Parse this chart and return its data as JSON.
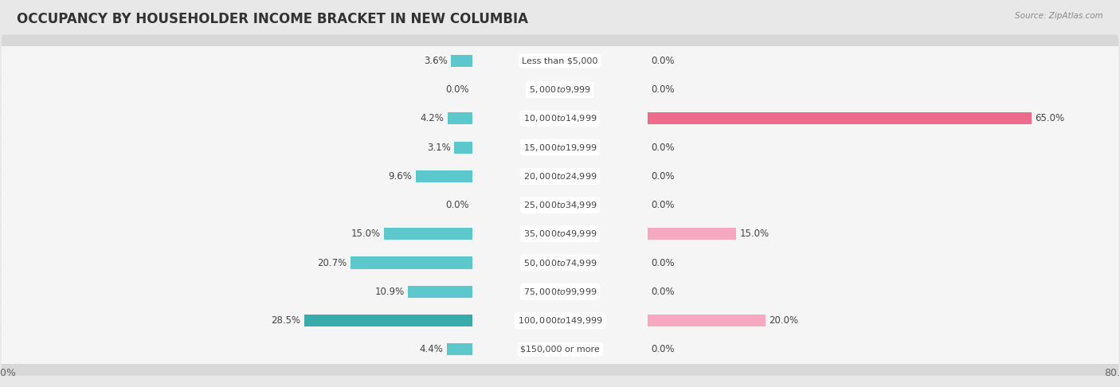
{
  "title": "OCCUPANCY BY HOUSEHOLDER INCOME BRACKET IN NEW COLUMBIA",
  "source": "Source: ZipAtlas.com",
  "categories": [
    "Less than $5,000",
    "$5,000 to $9,999",
    "$10,000 to $14,999",
    "$15,000 to $19,999",
    "$20,000 to $24,999",
    "$25,000 to $34,999",
    "$35,000 to $49,999",
    "$50,000 to $74,999",
    "$75,000 to $99,999",
    "$100,000 to $149,999",
    "$150,000 or more"
  ],
  "owner_values": [
    3.6,
    0.0,
    4.2,
    3.1,
    9.6,
    0.0,
    15.0,
    20.7,
    10.9,
    28.5,
    4.4
  ],
  "renter_values": [
    0.0,
    0.0,
    65.0,
    0.0,
    0.0,
    0.0,
    15.0,
    0.0,
    0.0,
    20.0,
    0.0
  ],
  "owner_color": "#5CC8CB",
  "owner_color_dark": "#3AABAB",
  "renter_color": "#F5A8C0",
  "renter_color_dark": "#EE6B8E",
  "bar_height": 0.58,
  "xlim": 80.0,
  "background_color": "#e8e8e8",
  "row_bg_color": "#f5f5f5",
  "row_bg_shadow": "#d8d8d8",
  "title_fontsize": 12,
  "label_fontsize": 8.5,
  "cat_fontsize": 8.0,
  "tick_fontsize": 9,
  "legend_fontsize": 9
}
